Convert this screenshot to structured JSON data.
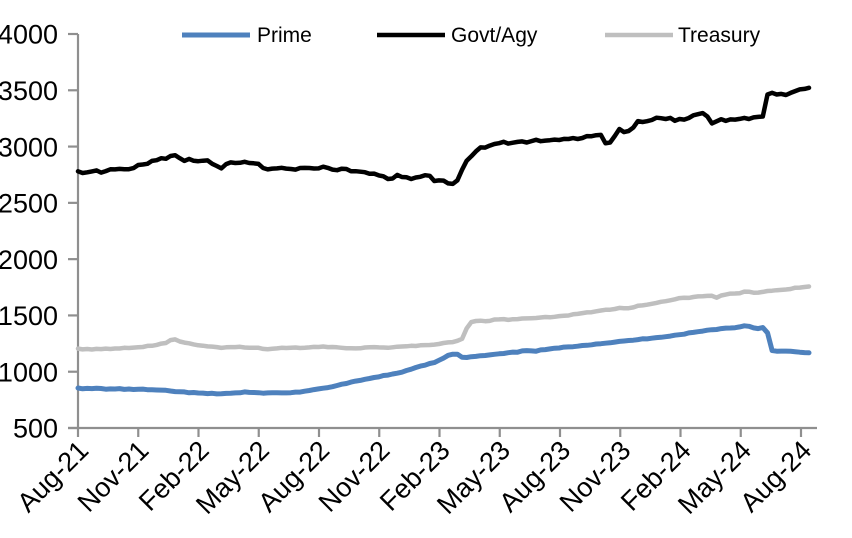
{
  "chart_data": {
    "type": "line",
    "title": "",
    "subtitle": "",
    "legend": {
      "position": "top",
      "entries": [
        "Prime",
        "Govt/Agy",
        "Treasury"
      ]
    },
    "x_axis": {
      "label": "",
      "unit": "months",
      "tick_interval_months": 3,
      "tick_labels": [
        "Aug-21",
        "Nov-21",
        "Feb-22",
        "May-22",
        "Aug-22",
        "Nov-22",
        "Feb-23",
        "May-23",
        "Aug-23",
        "Nov-23",
        "Feb-24",
        "May-24",
        "Aug-24"
      ]
    },
    "y_axis": {
      "label": "",
      "min": 500,
      "max": 4000,
      "step": 500,
      "tick_labels": [
        "500",
        "1000",
        "1500",
        "2000",
        "2500",
        "3000",
        "3500",
        "4000"
      ]
    },
    "x_domain_months": [
      0,
      36.4
    ],
    "grid": false,
    "series": [
      {
        "name": "Prime",
        "color": "#4E81BD",
        "points": [
          [
            0,
            855
          ],
          [
            0.5,
            848
          ],
          [
            1,
            852
          ],
          [
            1.5,
            846
          ],
          [
            2,
            848
          ],
          [
            2.5,
            843
          ],
          [
            3,
            845
          ],
          [
            3.5,
            840
          ],
          [
            4,
            836
          ],
          [
            4.5,
            830
          ],
          [
            5,
            822
          ],
          [
            5.5,
            815
          ],
          [
            6,
            810
          ],
          [
            6.5,
            806
          ],
          [
            7,
            804
          ],
          [
            7.5,
            808
          ],
          [
            8,
            812
          ],
          [
            8.3,
            820
          ],
          [
            8.7,
            812
          ],
          [
            9,
            814
          ],
          [
            9.5,
            810
          ],
          [
            10,
            814
          ],
          [
            10.5,
            812
          ],
          [
            11,
            820
          ],
          [
            11.5,
            832
          ],
          [
            12,
            845
          ],
          [
            12.5,
            862
          ],
          [
            13,
            882
          ],
          [
            13.5,
            900
          ],
          [
            14,
            922
          ],
          [
            14.5,
            938
          ],
          [
            15,
            958
          ],
          [
            15.5,
            972
          ],
          [
            16,
            988
          ],
          [
            16.5,
            1020
          ],
          [
            17,
            1048
          ],
          [
            17.3,
            1062
          ],
          [
            17.7,
            1080
          ],
          [
            18,
            1105
          ],
          [
            18.4,
            1142
          ],
          [
            18.8,
            1162
          ],
          [
            19.2,
            1122
          ],
          [
            19.6,
            1132
          ],
          [
            20,
            1140
          ],
          [
            20.5,
            1148
          ],
          [
            21,
            1158
          ],
          [
            21.5,
            1168
          ],
          [
            22,
            1178
          ],
          [
            22.4,
            1190
          ],
          [
            22.8,
            1184
          ],
          [
            23.2,
            1196
          ],
          [
            23.6,
            1203
          ],
          [
            24,
            1212
          ],
          [
            24.5,
            1222
          ],
          [
            25,
            1232
          ],
          [
            25.5,
            1240
          ],
          [
            26,
            1250
          ],
          [
            26.5,
            1258
          ],
          [
            27,
            1268
          ],
          [
            27.5,
            1278
          ],
          [
            28,
            1288
          ],
          [
            28.5,
            1298
          ],
          [
            29,
            1308
          ],
          [
            29.5,
            1318
          ],
          [
            30,
            1330
          ],
          [
            30.5,
            1345
          ],
          [
            31,
            1358
          ],
          [
            31.5,
            1372
          ],
          [
            32,
            1382
          ],
          [
            32.5,
            1390
          ],
          [
            33,
            1398
          ],
          [
            33.2,
            1408
          ],
          [
            33.5,
            1402
          ],
          [
            33.8,
            1378
          ],
          [
            34.1,
            1395
          ],
          [
            34.3,
            1398
          ],
          [
            34.42,
            1190
          ],
          [
            34.8,
            1185
          ],
          [
            35.2,
            1182
          ],
          [
            35.6,
            1178
          ],
          [
            36,
            1172
          ],
          [
            36.4,
            1168
          ]
        ]
      },
      {
        "name": "Govt/Agy",
        "color": "#000000",
        "points": [
          [
            0,
            2780
          ],
          [
            0.4,
            2770
          ],
          [
            0.8,
            2785
          ],
          [
            1.2,
            2775
          ],
          [
            1.6,
            2790
          ],
          [
            2,
            2800
          ],
          [
            2.5,
            2795
          ],
          [
            3,
            2830
          ],
          [
            3.5,
            2855
          ],
          [
            4,
            2885
          ],
          [
            4.4,
            2900
          ],
          [
            4.7,
            2935
          ],
          [
            5,
            2905
          ],
          [
            5.3,
            2880
          ],
          [
            5.7,
            2885
          ],
          [
            6,
            2862
          ],
          [
            6.4,
            2875
          ],
          [
            6.8,
            2840
          ],
          [
            7.1,
            2805
          ],
          [
            7.4,
            2858
          ],
          [
            7.8,
            2845
          ],
          [
            8.2,
            2862
          ],
          [
            8.6,
            2842
          ],
          [
            9,
            2852
          ],
          [
            9.3,
            2788
          ],
          [
            9.7,
            2805
          ],
          [
            10.2,
            2812
          ],
          [
            10.7,
            2800
          ],
          [
            11.2,
            2812
          ],
          [
            11.7,
            2805
          ],
          [
            12.2,
            2815
          ],
          [
            12.7,
            2795
          ],
          [
            13.2,
            2800
          ],
          [
            13.7,
            2778
          ],
          [
            14.2,
            2770
          ],
          [
            14.7,
            2758
          ],
          [
            15.2,
            2742
          ],
          [
            15.5,
            2698
          ],
          [
            15.8,
            2745
          ],
          [
            16.2,
            2735
          ],
          [
            16.6,
            2710
          ],
          [
            17,
            2728
          ],
          [
            17.4,
            2748
          ],
          [
            17.8,
            2692
          ],
          [
            18.1,
            2712
          ],
          [
            18.4,
            2668
          ],
          [
            18.7,
            2662
          ],
          [
            19,
            2715
          ],
          [
            19.2,
            2850
          ],
          [
            19.6,
            2925
          ],
          [
            20,
            2985
          ],
          [
            20.4,
            3005
          ],
          [
            20.8,
            3028
          ],
          [
            21.2,
            3048
          ],
          [
            21.6,
            3025
          ],
          [
            22,
            3042
          ],
          [
            22.4,
            3035
          ],
          [
            22.8,
            3055
          ],
          [
            23.2,
            3048
          ],
          [
            23.6,
            3062
          ],
          [
            24,
            3058
          ],
          [
            24.4,
            3072
          ],
          [
            24.8,
            3065
          ],
          [
            25.2,
            3090
          ],
          [
            25.6,
            3098
          ],
          [
            26,
            3105
          ],
          [
            26.3,
            3018
          ],
          [
            26.6,
            3050
          ],
          [
            26.9,
            3152
          ],
          [
            27.2,
            3132
          ],
          [
            27.6,
            3158
          ],
          [
            27.85,
            3232
          ],
          [
            28.2,
            3225
          ],
          [
            28.5,
            3222
          ],
          [
            28.8,
            3258
          ],
          [
            29.1,
            3240
          ],
          [
            29.4,
            3255
          ],
          [
            29.7,
            3235
          ],
          [
            30,
            3252
          ],
          [
            30.3,
            3245
          ],
          [
            30.6,
            3272
          ],
          [
            31,
            3300
          ],
          [
            31.3,
            3268
          ],
          [
            31.6,
            3195
          ],
          [
            31.9,
            3242
          ],
          [
            32.2,
            3235
          ],
          [
            32.6,
            3242
          ],
          [
            33,
            3248
          ],
          [
            33.4,
            3252
          ],
          [
            33.8,
            3262
          ],
          [
            34.1,
            3272
          ],
          [
            34.2,
            3275
          ],
          [
            34.3,
            3460
          ],
          [
            34.6,
            3478
          ],
          [
            34.9,
            3455
          ],
          [
            35.2,
            3465
          ],
          [
            35.5,
            3478
          ],
          [
            35.8,
            3490
          ],
          [
            36.1,
            3510
          ],
          [
            36.4,
            3522
          ]
        ]
      },
      {
        "name": "Treasury",
        "color": "#BFBFBF",
        "points": [
          [
            0,
            1205
          ],
          [
            0.5,
            1198
          ],
          [
            1,
            1200
          ],
          [
            1.5,
            1203
          ],
          [
            2,
            1206
          ],
          [
            2.5,
            1212
          ],
          [
            3,
            1218
          ],
          [
            3.5,
            1228
          ],
          [
            4,
            1242
          ],
          [
            4.4,
            1258
          ],
          [
            4.7,
            1292
          ],
          [
            5,
            1275
          ],
          [
            5.4,
            1255
          ],
          [
            5.8,
            1242
          ],
          [
            6.2,
            1230
          ],
          [
            6.6,
            1224
          ],
          [
            7,
            1214
          ],
          [
            7.5,
            1218
          ],
          [
            8,
            1222
          ],
          [
            8.5,
            1214
          ],
          [
            9,
            1210
          ],
          [
            9.4,
            1198
          ],
          [
            9.8,
            1208
          ],
          [
            10.3,
            1212
          ],
          [
            10.8,
            1216
          ],
          [
            11.3,
            1212
          ],
          [
            11.8,
            1218
          ],
          [
            12.3,
            1222
          ],
          [
            12.8,
            1216
          ],
          [
            13.3,
            1210
          ],
          [
            13.8,
            1206
          ],
          [
            14.3,
            1214
          ],
          [
            14.8,
            1218
          ],
          [
            15.3,
            1214
          ],
          [
            15.8,
            1220
          ],
          [
            16.3,
            1224
          ],
          [
            16.8,
            1230
          ],
          [
            17.3,
            1237
          ],
          [
            17.8,
            1244
          ],
          [
            18.3,
            1254
          ],
          [
            18.8,
            1270
          ],
          [
            19.1,
            1284
          ],
          [
            19.5,
            1440
          ],
          [
            19.9,
            1452
          ],
          [
            20.3,
            1448
          ],
          [
            20.7,
            1460
          ],
          [
            21.1,
            1466
          ],
          [
            21.5,
            1462
          ],
          [
            22,
            1470
          ],
          [
            22.5,
            1474
          ],
          [
            23,
            1480
          ],
          [
            23.5,
            1486
          ],
          [
            24,
            1494
          ],
          [
            24.5,
            1504
          ],
          [
            25,
            1516
          ],
          [
            25.5,
            1528
          ],
          [
            26,
            1542
          ],
          [
            26.5,
            1552
          ],
          [
            27,
            1565
          ],
          [
            27.3,
            1560
          ],
          [
            27.7,
            1575
          ],
          [
            28,
            1588
          ],
          [
            28.5,
            1602
          ],
          [
            29,
            1618
          ],
          [
            29.5,
            1635
          ],
          [
            30,
            1652
          ],
          [
            30.5,
            1660
          ],
          [
            31,
            1668
          ],
          [
            31.5,
            1678
          ],
          [
            31.8,
            1655
          ],
          [
            32.1,
            1682
          ],
          [
            32.5,
            1692
          ],
          [
            33,
            1700
          ],
          [
            33.3,
            1715
          ],
          [
            33.6,
            1698
          ],
          [
            34,
            1708
          ],
          [
            34.4,
            1716
          ],
          [
            34.8,
            1722
          ],
          [
            35.2,
            1730
          ],
          [
            35.6,
            1740
          ],
          [
            36,
            1750
          ],
          [
            36.4,
            1757
          ]
        ]
      }
    ]
  }
}
